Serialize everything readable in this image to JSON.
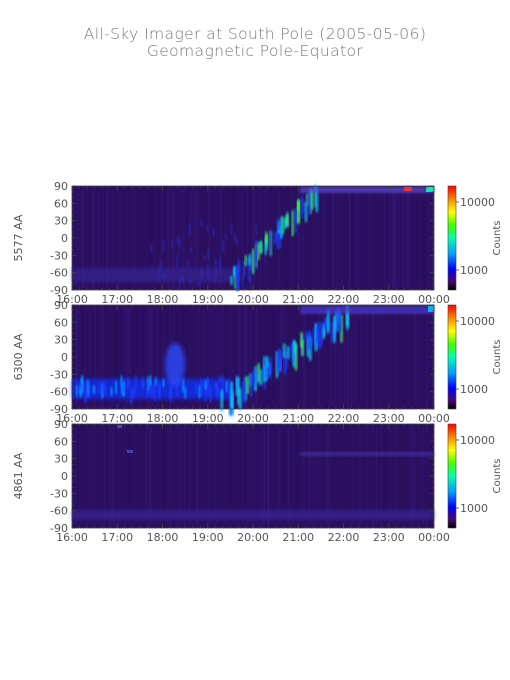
{
  "title": "All-Sky Imager at South Pole (2005-05-06)",
  "subtitle": "Geomagnetic Pole-Equator",
  "colors": {
    "background": "#ffffff",
    "text": "#555555",
    "panel_base": "#2a0f5e"
  },
  "chart_data": [
    {
      "type": "heatmap",
      "ylabel": "5577 AA",
      "xlabel": "",
      "x_ticks": [
        "16:00",
        "17:00",
        "18:00",
        "19:00",
        "20:00",
        "21:00",
        "22:00",
        "23:00",
        "00:00"
      ],
      "y_ticks": [
        90,
        60,
        30,
        0,
        -30,
        -60,
        -90
      ],
      "ylim": [
        -90,
        90
      ],
      "colorbar": {
        "label": "Counts",
        "ticks": [
          "10000",
          "1000"
        ]
      }
    },
    {
      "type": "heatmap",
      "ylabel": "6300 AA",
      "xlabel": "",
      "x_ticks": [
        "16:00",
        "17:00",
        "18:00",
        "19:00",
        "20:00",
        "21:00",
        "22:00",
        "23:00",
        "00:00"
      ],
      "y_ticks": [
        90,
        60,
        30,
        0,
        -30,
        -60,
        -90
      ],
      "ylim": [
        -90,
        90
      ],
      "colorbar": {
        "label": "Counts",
        "ticks": [
          "10000",
          "1000"
        ]
      }
    },
    {
      "type": "heatmap",
      "ylabel": "4861 AA",
      "xlabel": "",
      "x_ticks": [
        "16:00",
        "17:00",
        "18:00",
        "19:00",
        "20:00",
        "21:00",
        "22:00",
        "23:00",
        "00:00"
      ],
      "y_ticks": [
        90,
        60,
        30,
        0,
        -30,
        -60,
        -90
      ],
      "ylim": [
        -90,
        90
      ],
      "colorbar": {
        "label": "Counts",
        "ticks": [
          "10000",
          "1000"
        ]
      }
    }
  ]
}
